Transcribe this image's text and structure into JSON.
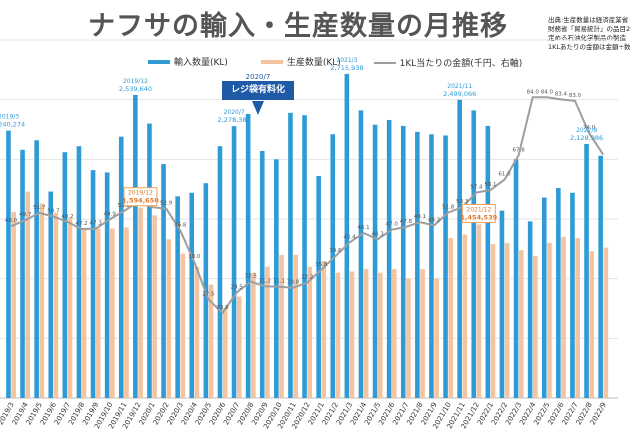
{
  "title": "ナフサの輸入・生産数量の月推移",
  "source_lines": [
    "出典:生産数量は経済産業省",
    "財務省「貿易統計」の品目2",
    "定める石油化学製品の製造",
    "1KLあたりの金額は金額÷数"
  ],
  "legend": {
    "import": "輸入数量(KL)",
    "production": "生産数量(KL)",
    "price": "1KL当たりの金額(千円、右軸)"
  },
  "callout": {
    "date": "2020/7",
    "label": "レジ袋有料化"
  },
  "colors": {
    "import": "#2e9bd6",
    "production": "#f4c3a0",
    "price": "#9e9e9e",
    "callout": "#1f5aa6",
    "highlight_box": "#f4a259"
  },
  "chart_data": {
    "type": "bar",
    "categories": [
      "2019/3",
      "2019/4",
      "2019/5",
      "2019/6",
      "2019/7",
      "2019/8",
      "2019/9",
      "2019/10",
      "2019/11",
      "2019/12",
      "2020/1",
      "2020/2",
      "2020/3",
      "2020/4",
      "2020/5",
      "2020/6",
      "2020/7",
      "2020/8",
      "2020/9",
      "2020/10",
      "2020/11",
      "2020/12",
      "2021/1",
      "2021/2",
      "2021/3",
      "2021/4",
      "2021/5",
      "2021/6",
      "2021/7",
      "2021/8",
      "2021/9",
      "2021/10",
      "2021/11",
      "2021/12",
      "2022/1",
      "2022/2",
      "2022/3",
      "2022/4",
      "2022/5",
      "2022/6",
      "2022/7",
      "2022/8",
      "2022/9"
    ],
    "series": [
      {
        "name": "輸入数量(KL)",
        "values": [
          2240274,
          2080000,
          2160000,
          1730000,
          2060000,
          2110000,
          1910000,
          1890000,
          2190000,
          2539640,
          2300000,
          1960000,
          1690000,
          1720000,
          1800000,
          2110000,
          2278388,
          2380000,
          2070000,
          2000000,
          2390000,
          2370000,
          1860000,
          2210000,
          2715938,
          2410000,
          2290000,
          2330000,
          2280000,
          2230000,
          2210000,
          2200000,
          2499066,
          2410000,
          2280000,
          1570000,
          2000000,
          1480000,
          1680000,
          1760000,
          1720000,
          2128986,
          2030000
        ]
      },
      {
        "name": "生産数量(KL)",
        "values": [
          1560000,
          1730000,
          1630000,
          1550000,
          1510000,
          1420000,
          1420000,
          1420000,
          1430000,
          1594650,
          1530000,
          1330000,
          1210000,
          1100000,
          950000,
          750000,
          850000,
          1050000,
          1100000,
          1200000,
          1200000,
          1100000,
          1150000,
          1050000,
          1060000,
          1080000,
          1050000,
          1080000,
          1000000,
          1080000,
          1000000,
          1340000,
          1370000,
          1454539,
          1290000,
          1300000,
          1240000,
          1190000,
          1300000,
          1350000,
          1340000,
          1230000,
          1260000
        ]
      },
      {
        "name": "1KL当たりの金額(千円、右軸)",
        "values": [
          48.0,
          49.7,
          51.7,
          50.7,
          49.2,
          47.2,
          47.3,
          49.9,
          52.2,
          54.7,
          53.3,
          52.9,
          46.8,
          38.0,
          27.5,
          23.8,
          29.5,
          32.5,
          31.2,
          31.1,
          30.8,
          32.2,
          35.8,
          39.6,
          43.4,
          46.1,
          44.3,
          47.0,
          47.8,
          49.1,
          48.2,
          51.8,
          53.3,
          57.4,
          58.1,
          61.0,
          67.8,
          84.0,
          84.0,
          83.4,
          83.0,
          74.0,
          68.0
        ]
      }
    ],
    "ylim": [
      0,
      3000000
    ],
    "y2lim": [
      0,
      100
    ],
    "bar_labels": [
      {
        "index": 0,
        "series": 0,
        "date": "2019/3",
        "value": "2,240,274"
      },
      {
        "index": 9,
        "series": 0,
        "date": "2019/12",
        "value": "2,539,640"
      },
      {
        "index": 16,
        "series": 0,
        "date": "2020/7",
        "value": "2,278,388"
      },
      {
        "index": 24,
        "series": 0,
        "date": "2021/3",
        "value": "2,715,938"
      },
      {
        "index": 32,
        "series": 0,
        "date": "2021/11",
        "value": "2,499,066"
      },
      {
        "index": 41,
        "series": 0,
        "date": "2022/8",
        "value": "2,128,986"
      },
      {
        "index": 9,
        "series": 1,
        "date": "2019/12",
        "value": "1,594,650",
        "boxed": true
      },
      {
        "index": 33,
        "series": 1,
        "date": "2021/12",
        "value": "1,454,539",
        "boxed": true
      }
    ],
    "price_labels": [
      {
        "index": 0,
        "text": "48.0"
      },
      {
        "index": 1,
        "text": "49.7"
      },
      {
        "index": 2,
        "text": "51.7"
      },
      {
        "index": 3,
        "text": "50.7"
      },
      {
        "index": 4,
        "text": "49.2"
      },
      {
        "index": 5,
        "text": "47.2"
      },
      {
        "index": 6,
        "text": "47.3"
      },
      {
        "index": 7,
        "text": "49.9"
      },
      {
        "index": 8,
        "text": "52.2"
      },
      {
        "index": 9,
        "text": "54.7"
      },
      {
        "index": 10,
        "text": "53.3"
      },
      {
        "index": 11,
        "text": "52.9"
      },
      {
        "index": 12,
        "text": "46.8"
      },
      {
        "index": 13,
        "text": "38.0"
      },
      {
        "index": 14,
        "text": "27.5"
      },
      {
        "index": 15,
        "text": "23.8"
      },
      {
        "index": 16,
        "text": "29.5"
      },
      {
        "index": 17,
        "text": "32.5"
      },
      {
        "index": 18,
        "text": "31.2"
      },
      {
        "index": 19,
        "text": "31.1"
      },
      {
        "index": 20,
        "text": "30.8"
      },
      {
        "index": 21,
        "text": "32.2"
      },
      {
        "index": 22,
        "text": "35.8"
      },
      {
        "index": 23,
        "text": "39.6"
      },
      {
        "index": 24,
        "text": "43.4"
      },
      {
        "index": 25,
        "text": "46.1"
      },
      {
        "index": 26,
        "text": "44.3"
      },
      {
        "index": 27,
        "text": "47.0"
      },
      {
        "index": 28,
        "text": "47.8"
      },
      {
        "index": 29,
        "text": "49.1"
      },
      {
        "index": 30,
        "text": "48.2"
      },
      {
        "index": 31,
        "text": "51.8"
      },
      {
        "index": 32,
        "text": "53.3"
      },
      {
        "index": 33,
        "text": "57.4"
      },
      {
        "index": 34,
        "text": "58.1"
      },
      {
        "index": 35,
        "text": "61.0"
      },
      {
        "index": 36,
        "text": "67.8"
      },
      {
        "index": 37,
        "text": "84.0"
      },
      {
        "index": 38,
        "text": "84.0"
      },
      {
        "index": 39,
        "text": "83.4"
      },
      {
        "index": 40,
        "text": "83.0"
      },
      {
        "index": 41,
        "text": "74.0"
      }
    ]
  }
}
